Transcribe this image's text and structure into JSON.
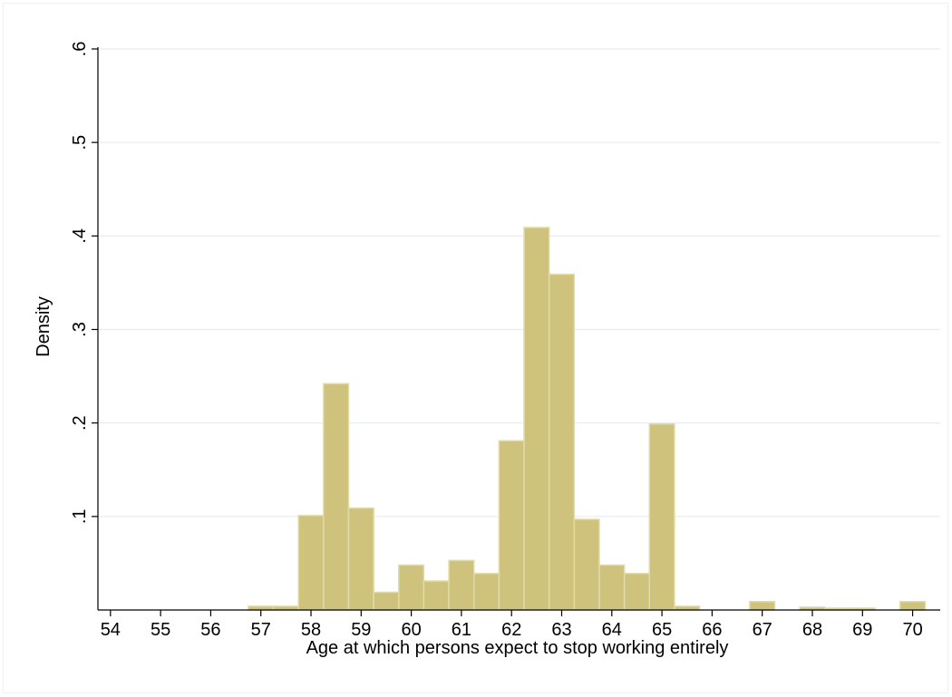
{
  "chart_data": {
    "type": "bar",
    "title": "",
    "xlabel": "Age at which persons expect to stop working entirely",
    "ylabel": "Density",
    "xlim": [
      53.75,
      70.55
    ],
    "ylim": [
      0,
      0.6
    ],
    "grid": true,
    "bar_color": "#cec27c",
    "bar_edge_color": "#e2dba8",
    "grid_color": "#e4ecf2",
    "x_ticks": [
      54,
      55,
      56,
      57,
      58,
      59,
      60,
      61,
      62,
      63,
      64,
      65,
      66,
      67,
      68,
      69,
      70
    ],
    "x_tick_labels": [
      "54",
      "55",
      "56",
      "57",
      "58",
      "59",
      "60",
      "61",
      "62",
      "63",
      "64",
      "65",
      "66",
      "67",
      "68",
      "69",
      "70"
    ],
    "y_ticks": [
      0.1,
      0.2,
      0.3,
      0.4,
      0.5,
      0.6
    ],
    "y_tick_labels": [
      ".1",
      ".2",
      ".3",
      ".4",
      ".5",
      ".6"
    ],
    "bin_width": 0.5,
    "bins": [
      {
        "start": 56.75,
        "value": 0.004
      },
      {
        "start": 57.25,
        "value": 0.004
      },
      {
        "start": 57.75,
        "value": 0.101
      },
      {
        "start": 58.25,
        "value": 0.242
      },
      {
        "start": 58.75,
        "value": 0.109
      },
      {
        "start": 59.25,
        "value": 0.019
      },
      {
        "start": 59.75,
        "value": 0.048
      },
      {
        "start": 60.25,
        "value": 0.031
      },
      {
        "start": 60.75,
        "value": 0.053
      },
      {
        "start": 61.25,
        "value": 0.039
      },
      {
        "start": 61.75,
        "value": 0.181
      },
      {
        "start": 62.25,
        "value": 0.409
      },
      {
        "start": 62.75,
        "value": 0.359
      },
      {
        "start": 63.25,
        "value": 0.097
      },
      {
        "start": 63.75,
        "value": 0.048
      },
      {
        "start": 64.25,
        "value": 0.039
      },
      {
        "start": 64.75,
        "value": 0.199
      },
      {
        "start": 65.25,
        "value": 0.004
      },
      {
        "start": 66.75,
        "value": 0.009
      },
      {
        "start": 67.75,
        "value": 0.003
      },
      {
        "start": 68.25,
        "value": 0.002
      },
      {
        "start": 68.75,
        "value": 0.002
      },
      {
        "start": 69.75,
        "value": 0.009
      }
    ]
  }
}
